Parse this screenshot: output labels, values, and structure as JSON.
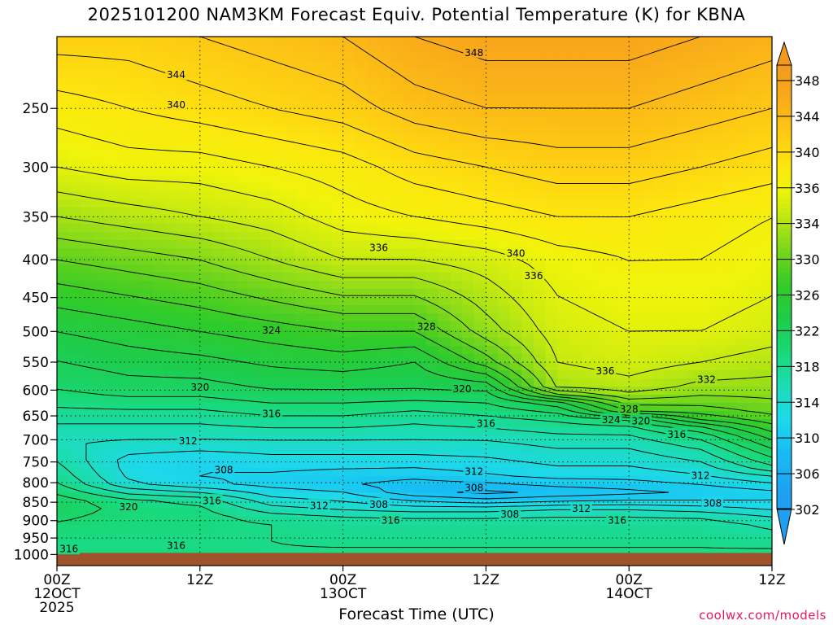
{
  "title": "2025101200 NAM3KM Forecast Equiv. Potential Temperature (K) for KBNA",
  "credit": "coolwx.com/models",
  "chart_data": {
    "type": "heatmap",
    "title": "2025101200 NAM3KM Forecast Equiv. Potential Temperature (K) for KBNA",
    "xlabel": "Forecast Time (UTC)",
    "ylabel": "Pressure (hPa)",
    "x_forecast_hours_range": [
      0,
      60
    ],
    "x_ticks": [
      {
        "hour": 0,
        "lines": [
          "00Z",
          "12OCT",
          "2025"
        ]
      },
      {
        "hour": 12,
        "lines": [
          "12Z"
        ]
      },
      {
        "hour": 24,
        "lines": [
          "00Z",
          "13OCT"
        ]
      },
      {
        "hour": 36,
        "lines": [
          "12Z"
        ]
      },
      {
        "hour": 48,
        "lines": [
          "00Z",
          "14OCT"
        ]
      },
      {
        "hour": 60,
        "lines": [
          "12Z"
        ]
      }
    ],
    "y_pressure_range_hpa": [
      1035,
      200
    ],
    "y_ticks": [
      250,
      300,
      350,
      400,
      450,
      500,
      550,
      600,
      650,
      700,
      750,
      800,
      850,
      900,
      950,
      1000
    ],
    "surface_pressure_hpa": 1000,
    "colorbar": {
      "min": 298,
      "max": 352,
      "levels": [
        302,
        306,
        310,
        314,
        318,
        322,
        326,
        330,
        334,
        336,
        340,
        344,
        348
      ],
      "tick_labels": [
        "302",
        "306",
        "310",
        "314",
        "318",
        "322",
        "326",
        "330",
        "334",
        "336",
        "340",
        "344",
        "348"
      ],
      "colors": [
        {
          "value": 300,
          "color": "#1e9ff0"
        },
        {
          "value": 305,
          "color": "#18bdf4"
        },
        {
          "value": 309,
          "color": "#1dd9ea"
        },
        {
          "value": 313,
          "color": "#1cdcb4"
        },
        {
          "value": 317,
          "color": "#19d97a"
        },
        {
          "value": 321,
          "color": "#1dcc4c"
        },
        {
          "value": 325,
          "color": "#2fcb2a"
        },
        {
          "value": 328,
          "color": "#5fd11e"
        },
        {
          "value": 331,
          "color": "#93dd18"
        },
        {
          "value": 334,
          "color": "#c6ea10"
        },
        {
          "value": 337,
          "color": "#f0f40a"
        },
        {
          "value": 340,
          "color": "#fde60e"
        },
        {
          "value": 344,
          "color": "#fdc814"
        },
        {
          "value": 348,
          "color": "#f9aa1a"
        },
        {
          "value": 352,
          "color": "#f39a1e"
        }
      ]
    },
    "profiles": [
      {
        "hour": 0,
        "theta_e": [
          {
            "p": 1035,
            "v": 320
          },
          {
            "p": 990,
            "v": 316
          },
          {
            "p": 900,
            "v": 318
          },
          {
            "p": 860,
            "v": 320
          },
          {
            "p": 800,
            "v": 316
          },
          {
            "p": 700,
            "v": 312
          },
          {
            "p": 650,
            "v": 315
          },
          {
            "p": 600,
            "v": 318
          },
          {
            "p": 500,
            "v": 322
          },
          {
            "p": 400,
            "v": 328
          },
          {
            "p": 350,
            "v": 332
          },
          {
            "p": 300,
            "v": 336
          },
          {
            "p": 250,
            "v": 339
          },
          {
            "p": 200,
            "v": 343
          }
        ]
      },
      {
        "hour": 6,
        "theta_e": [
          {
            "p": 1035,
            "v": 319
          },
          {
            "p": 990,
            "v": 316
          },
          {
            "p": 900,
            "v": 317
          },
          {
            "p": 850,
            "v": 317
          },
          {
            "p": 800,
            "v": 310
          },
          {
            "p": 750,
            "v": 309
          },
          {
            "p": 700,
            "v": 312
          },
          {
            "p": 650,
            "v": 315
          },
          {
            "p": 600,
            "v": 319
          },
          {
            "p": 500,
            "v": 323
          },
          {
            "p": 400,
            "v": 329
          },
          {
            "p": 350,
            "v": 333
          },
          {
            "p": 300,
            "v": 337
          },
          {
            "p": 250,
            "v": 340
          },
          {
            "p": 200,
            "v": 343
          }
        ]
      },
      {
        "hour": 12,
        "theta_e": [
          {
            "p": 1035,
            "v": 318
          },
          {
            "p": 980,
            "v": 316
          },
          {
            "p": 900,
            "v": 317
          },
          {
            "p": 850,
            "v": 316
          },
          {
            "p": 800,
            "v": 308
          },
          {
            "p": 750,
            "v": 308
          },
          {
            "p": 700,
            "v": 312
          },
          {
            "p": 650,
            "v": 315
          },
          {
            "p": 600,
            "v": 319
          },
          {
            "p": 500,
            "v": 324
          },
          {
            "p": 400,
            "v": 330
          },
          {
            "p": 350,
            "v": 334
          },
          {
            "p": 300,
            "v": 337
          },
          {
            "p": 250,
            "v": 341
          },
          {
            "p": 200,
            "v": 344
          }
        ]
      },
      {
        "hour": 18,
        "theta_e": [
          {
            "p": 1035,
            "v": 317
          },
          {
            "p": 980,
            "v": 316
          },
          {
            "p": 900,
            "v": 316
          },
          {
            "p": 860,
            "v": 312
          },
          {
            "p": 800,
            "v": 307
          },
          {
            "p": 750,
            "v": 309
          },
          {
            "p": 700,
            "v": 312
          },
          {
            "p": 650,
            "v": 316
          },
          {
            "p": 600,
            "v": 320
          },
          {
            "p": 500,
            "v": 325
          },
          {
            "p": 400,
            "v": 332
          },
          {
            "p": 350,
            "v": 335
          },
          {
            "p": 300,
            "v": 338
          },
          {
            "p": 250,
            "v": 342
          },
          {
            "p": 200,
            "v": 345
          }
        ]
      },
      {
        "hour": 24,
        "theta_e": [
          {
            "p": 1035,
            "v": 317
          },
          {
            "p": 980,
            "v": 316
          },
          {
            "p": 900,
            "v": 315
          },
          {
            "p": 860,
            "v": 311
          },
          {
            "p": 800,
            "v": 306
          },
          {
            "p": 750,
            "v": 309
          },
          {
            "p": 700,
            "v": 312
          },
          {
            "p": 650,
            "v": 316
          },
          {
            "p": 600,
            "v": 320
          },
          {
            "p": 550,
            "v": 323
          },
          {
            "p": 500,
            "v": 326
          },
          {
            "p": 400,
            "v": 334
          },
          {
            "p": 350,
            "v": 337
          },
          {
            "p": 300,
            "v": 339
          },
          {
            "p": 250,
            "v": 343
          },
          {
            "p": 200,
            "v": 346
          }
        ]
      },
      {
        "hour": 30,
        "theta_e": [
          {
            "p": 1035,
            "v": 317
          },
          {
            "p": 980,
            "v": 316
          },
          {
            "p": 900,
            "v": 315
          },
          {
            "p": 860,
            "v": 310
          },
          {
            "p": 820,
            "v": 304
          },
          {
            "p": 750,
            "v": 309
          },
          {
            "p": 700,
            "v": 312
          },
          {
            "p": 650,
            "v": 315
          },
          {
            "p": 600,
            "v": 320
          },
          {
            "p": 550,
            "v": 322
          },
          {
            "p": 500,
            "v": 326
          },
          {
            "p": 400,
            "v": 334
          },
          {
            "p": 350,
            "v": 338
          },
          {
            "p": 300,
            "v": 341
          },
          {
            "p": 250,
            "v": 345
          },
          {
            "p": 200,
            "v": 348
          }
        ]
      },
      {
        "hour": 36,
        "theta_e": [
          {
            "p": 1035,
            "v": 317
          },
          {
            "p": 980,
            "v": 316
          },
          {
            "p": 900,
            "v": 315
          },
          {
            "p": 860,
            "v": 310
          },
          {
            "p": 830,
            "v": 303
          },
          {
            "p": 780,
            "v": 308
          },
          {
            "p": 700,
            "v": 312
          },
          {
            "p": 650,
            "v": 316
          },
          {
            "p": 600,
            "v": 320
          },
          {
            "p": 550,
            "v": 327
          },
          {
            "p": 500,
            "v": 331
          },
          {
            "p": 400,
            "v": 335
          },
          {
            "p": 350,
            "v": 339
          },
          {
            "p": 300,
            "v": 342
          },
          {
            "p": 250,
            "v": 346
          },
          {
            "p": 200,
            "v": 349
          }
        ]
      },
      {
        "hour": 42,
        "theta_e": [
          {
            "p": 1035,
            "v": 317
          },
          {
            "p": 980,
            "v": 316
          },
          {
            "p": 900,
            "v": 315
          },
          {
            "p": 860,
            "v": 311
          },
          {
            "p": 830,
            "v": 304
          },
          {
            "p": 780,
            "v": 309
          },
          {
            "p": 700,
            "v": 313
          },
          {
            "p": 650,
            "v": 317
          },
          {
            "p": 620,
            "v": 322
          },
          {
            "p": 600,
            "v": 332
          },
          {
            "p": 550,
            "v": 334
          },
          {
            "p": 500,
            "v": 335
          },
          {
            "p": 400,
            "v": 337
          },
          {
            "p": 350,
            "v": 340
          },
          {
            "p": 300,
            "v": 343
          },
          {
            "p": 250,
            "v": 346
          },
          {
            "p": 200,
            "v": 349
          }
        ]
      },
      {
        "hour": 48,
        "theta_e": [
          {
            "p": 1035,
            "v": 317
          },
          {
            "p": 980,
            "v": 316
          },
          {
            "p": 900,
            "v": 315
          },
          {
            "p": 860,
            "v": 311
          },
          {
            "p": 830,
            "v": 305
          },
          {
            "p": 780,
            "v": 309
          },
          {
            "p": 700,
            "v": 313
          },
          {
            "p": 660,
            "v": 317
          },
          {
            "p": 640,
            "v": 326
          },
          {
            "p": 600,
            "v": 333
          },
          {
            "p": 550,
            "v": 335
          },
          {
            "p": 500,
            "v": 336
          },
          {
            "p": 400,
            "v": 338
          },
          {
            "p": 350,
            "v": 340
          },
          {
            "p": 300,
            "v": 343
          },
          {
            "p": 250,
            "v": 346
          },
          {
            "p": 200,
            "v": 349
          }
        ]
      },
      {
        "hour": 54,
        "theta_e": [
          {
            "p": 1035,
            "v": 317
          },
          {
            "p": 980,
            "v": 316
          },
          {
            "p": 900,
            "v": 315
          },
          {
            "p": 860,
            "v": 310
          },
          {
            "p": 830,
            "v": 306
          },
          {
            "p": 780,
            "v": 310
          },
          {
            "p": 720,
            "v": 314
          },
          {
            "p": 680,
            "v": 318
          },
          {
            "p": 650,
            "v": 326
          },
          {
            "p": 600,
            "v": 331
          },
          {
            "p": 550,
            "v": 334
          },
          {
            "p": 500,
            "v": 336
          },
          {
            "p": 400,
            "v": 338
          },
          {
            "p": 350,
            "v": 339
          },
          {
            "p": 300,
            "v": 342
          },
          {
            "p": 250,
            "v": 345
          },
          {
            "p": 200,
            "v": 348
          }
        ]
      },
      {
        "hour": 60,
        "theta_e": [
          {
            "p": 1035,
            "v": 317
          },
          {
            "p": 980,
            "v": 316
          },
          {
            "p": 900,
            "v": 313
          },
          {
            "p": 860,
            "v": 309
          },
          {
            "p": 830,
            "v": 307
          },
          {
            "p": 790,
            "v": 311
          },
          {
            "p": 760,
            "v": 316
          },
          {
            "p": 700,
            "v": 322
          },
          {
            "p": 650,
            "v": 328
          },
          {
            "p": 600,
            "v": 331
          },
          {
            "p": 550,
            "v": 333
          },
          {
            "p": 500,
            "v": 335
          },
          {
            "p": 400,
            "v": 337
          },
          {
            "p": 350,
            "v": 338
          },
          {
            "p": 300,
            "v": 341
          },
          {
            "p": 250,
            "v": 344
          },
          {
            "p": 200,
            "v": 347
          }
        ]
      }
    ],
    "annotations": [
      {
        "text": "344",
        "hour": 10,
        "p": 225
      },
      {
        "text": "348",
        "hour": 35,
        "p": 210
      },
      {
        "text": "340",
        "hour": 10,
        "p": 247
      },
      {
        "text": "336",
        "hour": 27,
        "p": 385
      },
      {
        "text": "340",
        "hour": 38.5,
        "p": 392
      },
      {
        "text": "336",
        "hour": 40,
        "p": 420
      },
      {
        "text": "328",
        "hour": 31,
        "p": 492
      },
      {
        "text": "324",
        "hour": 18,
        "p": 498
      },
      {
        "text": "336",
        "hour": 46,
        "p": 565
      },
      {
        "text": "332",
        "hour": 54.5,
        "p": 580
      },
      {
        "text": "320",
        "hour": 12,
        "p": 594
      },
      {
        "text": "320",
        "hour": 34,
        "p": 597
      },
      {
        "text": "328",
        "hour": 48,
        "p": 636
      },
      {
        "text": "324",
        "hour": 46.5,
        "p": 657
      },
      {
        "text": "320",
        "hour": 49,
        "p": 660
      },
      {
        "text": "316",
        "hour": 18,
        "p": 645
      },
      {
        "text": "316",
        "hour": 36,
        "p": 665
      },
      {
        "text": "316",
        "hour": 52,
        "p": 688
      },
      {
        "text": "312",
        "hour": 11,
        "p": 702
      },
      {
        "text": "312",
        "hour": 35,
        "p": 772
      },
      {
        "text": "312",
        "hour": 54,
        "p": 782
      },
      {
        "text": "308",
        "hour": 14,
        "p": 768
      },
      {
        "text": "308",
        "hour": 35,
        "p": 812
      },
      {
        "text": "308",
        "hour": 27,
        "p": 855
      },
      {
        "text": "308",
        "hour": 38,
        "p": 882
      },
      {
        "text": "308",
        "hour": 55,
        "p": 852
      },
      {
        "text": "316",
        "hour": 13,
        "p": 845
      },
      {
        "text": "312",
        "hour": 22,
        "p": 858
      },
      {
        "text": "312",
        "hour": 44,
        "p": 866
      },
      {
        "text": "320",
        "hour": 6,
        "p": 862
      },
      {
        "text": "316",
        "hour": 28,
        "p": 898
      },
      {
        "text": "316",
        "hour": 47,
        "p": 898
      },
      {
        "text": "316",
        "hour": 1,
        "p": 982
      },
      {
        "text": "316",
        "hour": 10,
        "p": 972
      }
    ]
  }
}
